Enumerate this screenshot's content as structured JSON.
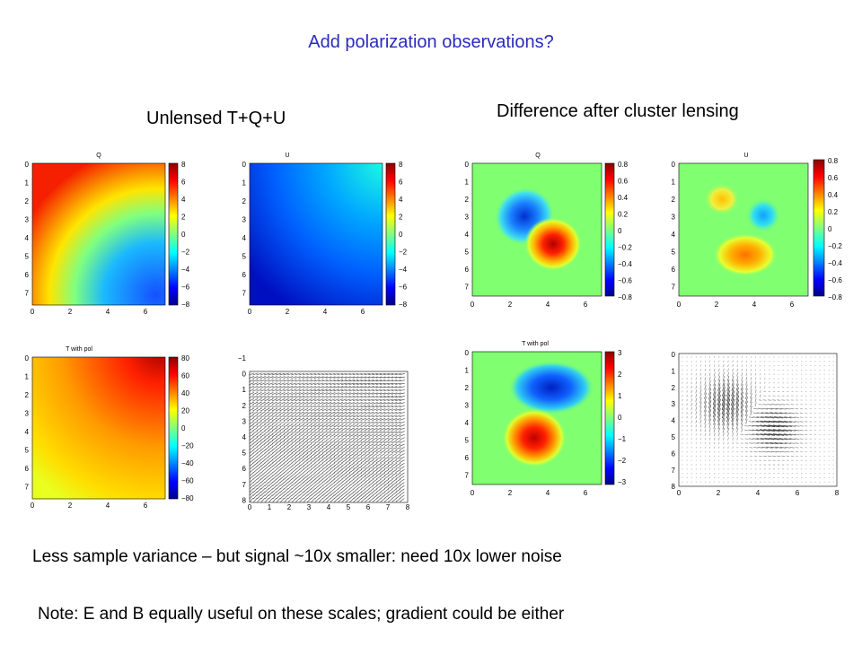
{
  "slide": {
    "title": "Add polarization observations?",
    "heading_left": "Unlensed T+Q+U",
    "heading_right": "Difference after cluster lensing",
    "caption1": "Less sample variance – but signal ~10x smaller: need 10x lower noise",
    "caption2": "Note: E and B equally useful on these scales; gradient could be either"
  },
  "panels": {
    "unlensed_q": {
      "title": "Q",
      "colorbar_ticks": [
        "8",
        "6",
        "4",
        "2",
        "0",
        "−2",
        "−4",
        "−6",
        "−8"
      ],
      "y_ticks": [
        "0",
        "1",
        "2",
        "3",
        "4",
        "5",
        "6",
        "7"
      ],
      "x_ticks": [
        "0",
        "2",
        "4",
        "6"
      ]
    },
    "unlensed_u": {
      "title": "U",
      "colorbar_ticks": [
        "8",
        "6",
        "4",
        "2",
        "0",
        "−2",
        "−4",
        "−6",
        "−8"
      ],
      "y_ticks": [
        "0",
        "1",
        "2",
        "3",
        "4",
        "5",
        "6",
        "7"
      ],
      "x_ticks": [
        "0",
        "2",
        "4",
        "6"
      ]
    },
    "unlensed_t": {
      "title": "T with pol",
      "colorbar_ticks": [
        "80",
        "60",
        "40",
        "20",
        "0",
        "−20",
        "−40",
        "−60",
        "−80"
      ],
      "y_ticks": [
        "0",
        "1",
        "2",
        "3",
        "4",
        "5",
        "6",
        "7"
      ],
      "x_ticks": [
        "0",
        "2",
        "4",
        "6"
      ]
    },
    "unlensed_vec": {
      "title": "",
      "y_ticks": [
        "−1",
        "0",
        "1",
        "2",
        "3",
        "4",
        "5",
        "6",
        "7",
        "8"
      ],
      "x_ticks": [
        "0",
        "1",
        "2",
        "3",
        "4",
        "5",
        "6",
        "7",
        "8"
      ]
    },
    "diff_q": {
      "title": "Q",
      "colorbar_ticks": [
        "0.8",
        "0.6",
        "0.4",
        "0.2",
        "0",
        "−0.2",
        "−0.4",
        "−0.6",
        "−0.8"
      ],
      "y_ticks": [
        "0",
        "1",
        "2",
        "3",
        "4",
        "5",
        "6",
        "7"
      ],
      "x_ticks": [
        "0",
        "2",
        "4",
        "6"
      ]
    },
    "diff_u": {
      "title": "U",
      "colorbar_ticks": [
        "0.8",
        "0.6",
        "0.4",
        "0.2",
        "0",
        "−0.2",
        "−0.4",
        "−0.6",
        "−0.8"
      ],
      "y_ticks": [
        "0",
        "1",
        "2",
        "3",
        "4",
        "5",
        "6",
        "7"
      ],
      "x_ticks": [
        "0",
        "2",
        "4",
        "6"
      ]
    },
    "diff_t": {
      "title": "T with pol",
      "colorbar_ticks": [
        "3",
        "2",
        "1",
        "0",
        "−1",
        "−2",
        "−3"
      ],
      "y_ticks": [
        "0",
        "1",
        "2",
        "3",
        "4",
        "5",
        "6",
        "7"
      ],
      "x_ticks": [
        "0",
        "2",
        "4",
        "6"
      ]
    },
    "diff_vec": {
      "title": "",
      "y_ticks": [
        "0",
        "1",
        "2",
        "3",
        "4",
        "5",
        "6",
        "7",
        "8"
      ],
      "x_ticks": [
        "0",
        "2",
        "4",
        "6",
        "8"
      ]
    }
  },
  "colors": {
    "title_blue": "#2b2bbf"
  }
}
